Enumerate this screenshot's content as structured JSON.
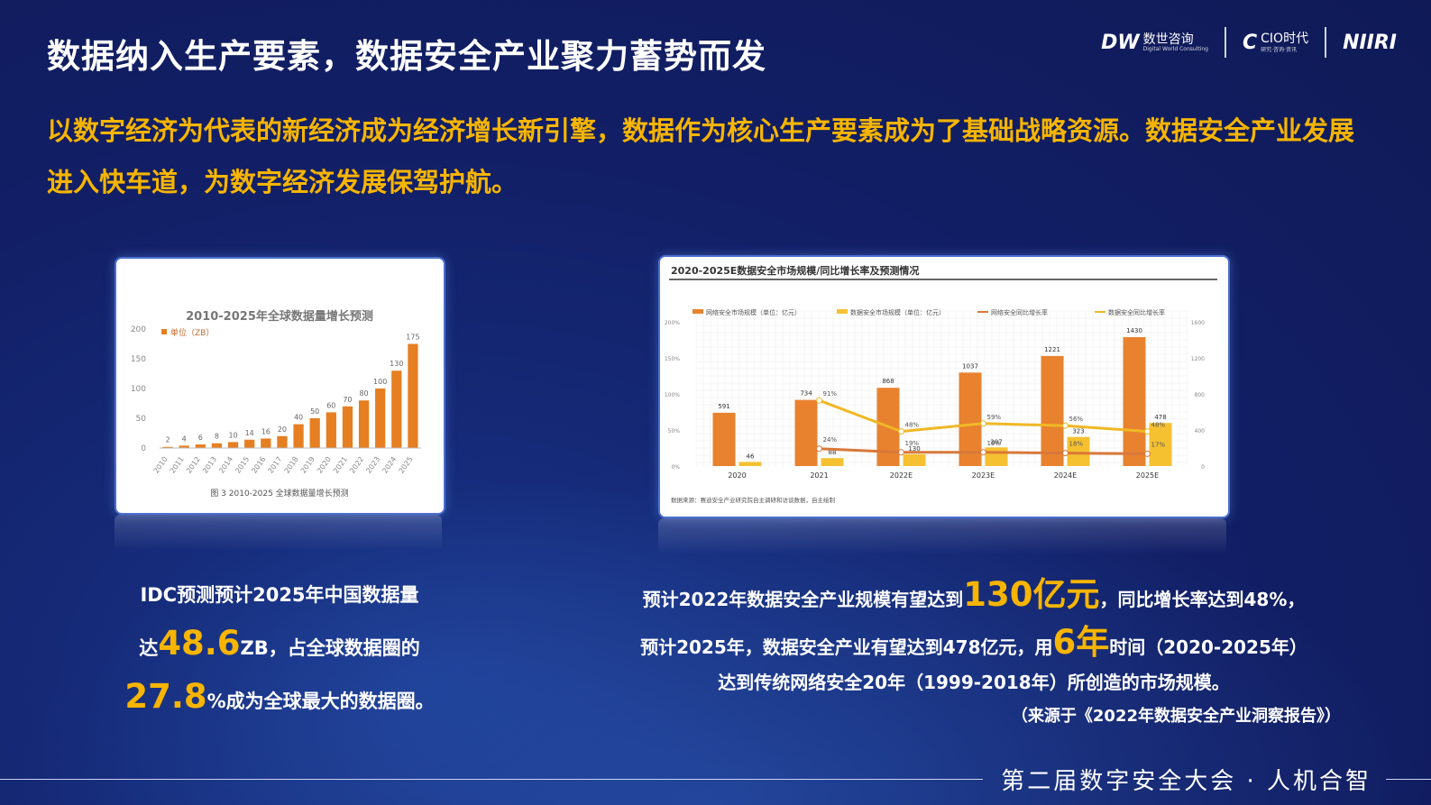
{
  "title": "数据纳入生产要素，数据安全产业聚力蓄势而发",
  "logos": [
    {
      "mark": "DW",
      "text": "数世咨询",
      "sub": "Digital World Consulting"
    },
    {
      "mark": "C",
      "text": "CIO时代",
      "sub": "研究·咨询·资讯"
    },
    {
      "mark": "NIIRI",
      "text": "",
      "sub": ""
    }
  ],
  "headline": "以数字经济为代表的新经济成为经济增长新引擎，数据作为核心生产要素成为了基础战略资源。数据安全产业发展进入快车道，为数字经济发展保驾护航。",
  "left_caption": {
    "line1": "IDC预测预计2025年中国数据量",
    "line2_pre": "达",
    "line2_big": "48.6",
    "line2_post": "ZB，占全球数据圈的",
    "line3_big": "27.8",
    "line3_post": "%成为全球最大的数据圈。"
  },
  "right_caption": {
    "l1_pre": "预计2022年数据安全产业规模有望达到",
    "l1_big": "130亿元",
    "l1_post": "，同比增长率达到48%，",
    "l2_pre": "预计2025年，数据安全产业有望达到478亿元，用",
    "l2_big": "6年",
    "l2_post": "时间（2020-2025年）",
    "l3": "达到传统网络安全20年（1999-2018年）所创造的市场规模。"
  },
  "source": "（来源于《2022年数据安全产业洞察报告》）",
  "footer": "第二届数字安全大会 · 人机合智",
  "chart_data": [
    {
      "type": "bar",
      "title": "2010-2025年全球数据量增长预测",
      "legend": "单位（ZB）",
      "caption": "图 3 2010-2025 全球数据量增长预测",
      "categories": [
        "2010",
        "2011",
        "2012",
        "2013",
        "2014",
        "2015",
        "2016",
        "2017",
        "2018",
        "2019",
        "2020",
        "2021",
        "2022",
        "2023",
        "2024",
        "2025"
      ],
      "values": [
        2,
        4,
        6,
        8,
        10,
        14,
        16,
        20,
        40,
        50,
        60,
        70,
        80,
        100,
        130,
        175
      ],
      "yticks": [
        0,
        50,
        100,
        150,
        200
      ],
      "ylim": [
        0,
        200
      ],
      "color": "#e67e22"
    },
    {
      "type": "bar",
      "title": "2020-2025E数据安全市场规模/同比增长率及预测情况",
      "categories": [
        "2020",
        "2021",
        "2022E",
        "2023E",
        "2024E",
        "2025E"
      ],
      "series": [
        {
          "name": "网络安全市场规模（单位：亿元）",
          "kind": "bar",
          "color": "#e8822f",
          "values": [
            591,
            734,
            868,
            1037,
            1221,
            1430
          ]
        },
        {
          "name": "数据安全市场规模（单位：亿元）",
          "kind": "bar",
          "color": "#f5c131",
          "values": [
            46,
            88,
            130,
            207,
            323,
            478
          ]
        },
        {
          "name": "网络安全同比增长率",
          "kind": "line",
          "color": "#d9783a",
          "values": [
            null,
            24,
            19,
            19,
            18,
            17
          ],
          "labels": [
            "",
            "24%",
            "19%",
            "19%",
            "18%",
            "17%"
          ]
        },
        {
          "name": "数据安全同比增长率",
          "kind": "line",
          "color": "#f0b825",
          "values": [
            null,
            91,
            48,
            59,
            56,
            48
          ],
          "labels": [
            "",
            "91%",
            "48%",
            "59%",
            "56%",
            "48%"
          ]
        }
      ],
      "yticks_left": [
        "0%",
        "50%",
        "100%",
        "150%",
        "200%"
      ],
      "yticks_right": [
        "0",
        "400",
        "800",
        "1200",
        "1600"
      ],
      "ylim_left": [
        0,
        200
      ],
      "ylim_right": [
        0,
        1600
      ],
      "note": "数据来源：赛迪安全产业研究院自主调研和访谈数据，自主绘制"
    }
  ]
}
